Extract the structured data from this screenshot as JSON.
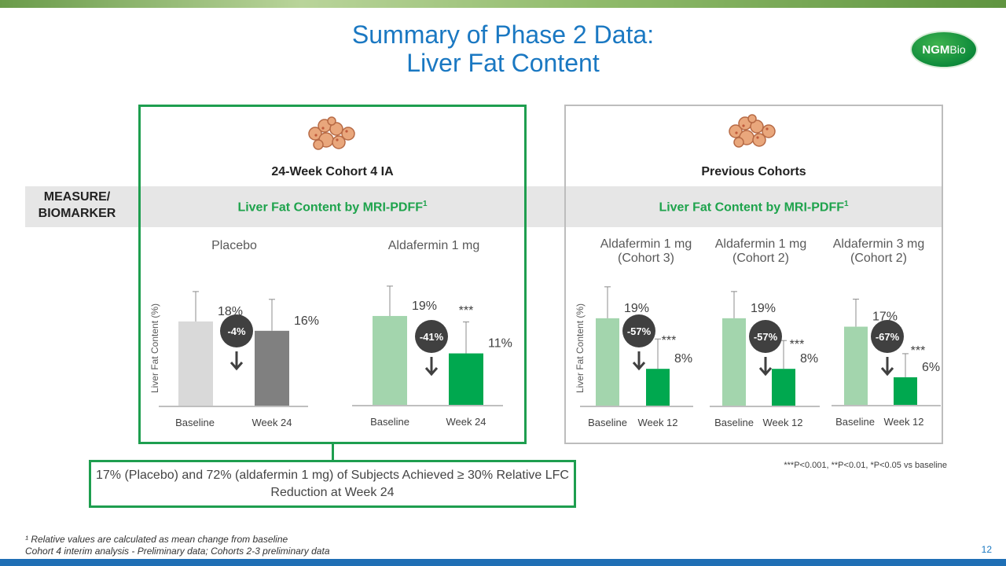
{
  "slide": {
    "title_line1": "Summary of Phase 2 Data:",
    "title_line2": "Liver Fat Content",
    "logo_text": "NGM",
    "logo_text2": "Bio",
    "measure_label_line1": "MEASURE/",
    "measure_label_line2": "BIOMARKER",
    "left_cohort_title": "24-Week Cohort 4 IA",
    "right_cohort_title": "Previous Cohorts",
    "lfc_label": "Liver Fat Content by MRI-PDFF",
    "lfc_superscript": "1",
    "callout_text": "17% (Placebo) and 72% (aldafermin 1 mg) of Subjects Achieved ≥ 30% Relative LFC Reduction at Week 24",
    "significance_note": "***P<0.001, **P<0.01, *P<0.05 vs baseline",
    "footnote_line1": "¹ Relative values are calculated as mean change from baseline",
    "footnote_line2": "Cohort 4 interim analysis - Preliminary data; Cohorts 2-3 preliminary data",
    "page_number": "12"
  },
  "chart_data": [
    {
      "type": "bar",
      "group_label": "Placebo",
      "categories": [
        "Baseline",
        "Week 24"
      ],
      "values": [
        18,
        16
      ],
      "value_labels": [
        "18%",
        "16%"
      ],
      "change_label": "-4%",
      "significance": "",
      "ylabel": "Liver Fat Content (%)",
      "colors": [
        "#d9d9d9",
        "#808080"
      ]
    },
    {
      "type": "bar",
      "group_label": "Aldafermin 1 mg",
      "categories": [
        "Baseline",
        "Week 24"
      ],
      "values": [
        19,
        11
      ],
      "value_labels": [
        "19%",
        "11%"
      ],
      "change_label": "-41%",
      "significance": "***",
      "colors": [
        "#a3d5ad",
        "#00a84f"
      ]
    },
    {
      "type": "bar",
      "group_label": "Aldafermin 1 mg",
      "group_sublabel": "(Cohort 3)",
      "categories": [
        "Baseline",
        "Week 12"
      ],
      "values": [
        19,
        8
      ],
      "value_labels": [
        "19%",
        "8%"
      ],
      "change_label": "-57%",
      "significance": "***",
      "ylabel": "Liver Fat Content (%)",
      "colors": [
        "#a3d5ad",
        "#00a84f"
      ]
    },
    {
      "type": "bar",
      "group_label": "Aldafermin 1 mg",
      "group_sublabel": "(Cohort 2)",
      "categories": [
        "Baseline",
        "Week 12"
      ],
      "values": [
        19,
        8
      ],
      "value_labels": [
        "19%",
        "8%"
      ],
      "change_label": "-57%",
      "significance": "***",
      "colors": [
        "#a3d5ad",
        "#00a84f"
      ]
    },
    {
      "type": "bar",
      "group_label": "Aldafermin 3 mg",
      "group_sublabel": "(Cohort 2)",
      "categories": [
        "Baseline",
        "Week 12"
      ],
      "values": [
        17,
        6
      ],
      "value_labels": [
        "17%",
        "6%"
      ],
      "change_label": "-67%",
      "significance": "***",
      "colors": [
        "#a3d5ad",
        "#00a84f"
      ]
    }
  ]
}
